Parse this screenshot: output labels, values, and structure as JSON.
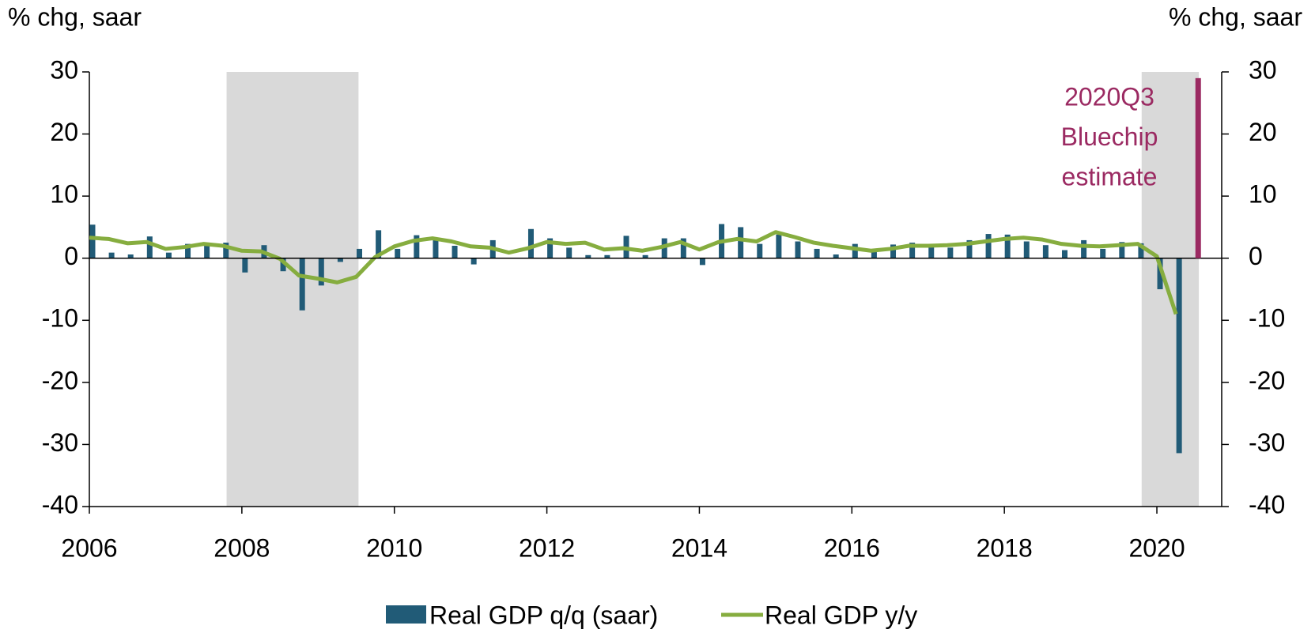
{
  "chart_data": {
    "type": "bar",
    "y_label": "% chg, saar",
    "y2_label": "% chg, saar",
    "x": [
      2006,
      2006.25,
      2006.5,
      2006.75,
      2007,
      2007.25,
      2007.5,
      2007.75,
      2008,
      2008.25,
      2008.5,
      2008.75,
      2009,
      2009.25,
      2009.5,
      2009.75,
      2010,
      2010.25,
      2010.5,
      2010.75,
      2011,
      2011.25,
      2011.5,
      2011.75,
      2012,
      2012.25,
      2012.5,
      2012.75,
      2013,
      2013.25,
      2013.5,
      2013.75,
      2014,
      2014.25,
      2014.5,
      2014.75,
      2015,
      2015.25,
      2015.5,
      2015.75,
      2016,
      2016.25,
      2016.5,
      2016.75,
      2017,
      2017.25,
      2017.5,
      2017.75,
      2018,
      2018.25,
      2018.5,
      2018.75,
      2019,
      2019.25,
      2019.5,
      2019.75,
      2020,
      2020.25
    ],
    "series": [
      {
        "name": "Real GDP q/q (saar)",
        "type": "bar",
        "color": "#215b77",
        "values": [
          5.4,
          0.9,
          0.6,
          3.5,
          0.9,
          2.3,
          2.2,
          2.5,
          -2.3,
          2.1,
          -2.1,
          -8.4,
          -4.4,
          -0.6,
          1.5,
          4.5,
          1.5,
          3.7,
          3.0,
          2.0,
          -1.0,
          2.9,
          -0.1,
          4.7,
          3.2,
          1.7,
          0.5,
          0.5,
          3.6,
          0.5,
          3.2,
          3.2,
          -1.1,
          5.5,
          5.0,
          2.3,
          3.8,
          2.7,
          1.5,
          0.6,
          2.3,
          1.3,
          2.2,
          2.5,
          2.3,
          1.7,
          2.9,
          3.9,
          3.8,
          2.7,
          2.1,
          1.3,
          2.9,
          1.5,
          2.6,
          2.4,
          -5.0,
          -31.4
        ]
      },
      {
        "name": "Real GDP y/y",
        "type": "line",
        "color": "#86ad3f",
        "values": [
          3.3,
          3.1,
          2.4,
          2.6,
          1.5,
          1.8,
          2.3,
          2.0,
          1.2,
          1.1,
          -0.1,
          -2.8,
          -3.3,
          -3.9,
          -3.0,
          0.2,
          1.9,
          2.8,
          3.2,
          2.7,
          1.9,
          1.7,
          0.9,
          1.6,
          2.6,
          2.3,
          2.5,
          1.4,
          1.6,
          1.2,
          1.8,
          2.6,
          1.4,
          2.6,
          3.1,
          2.7,
          4.2,
          3.4,
          2.5,
          2.0,
          1.6,
          1.2,
          1.5,
          2.0,
          2.0,
          2.1,
          2.3,
          2.7,
          3.1,
          3.3,
          3.0,
          2.3,
          2.0,
          1.9,
          2.1,
          2.3,
          0.3,
          -9.0
        ]
      }
    ],
    "estimate": {
      "x": 2020.5,
      "value": 29,
      "color": "#9b2a62"
    },
    "annotation": [
      "2020Q3",
      "Bluechip",
      "estimate"
    ],
    "shaded_ranges": [
      [
        2007.8,
        2009.53
      ],
      [
        2019.8,
        2020.55
      ]
    ],
    "shade_color": "#d9d9d9",
    "xlim": [
      2006,
      2020.85
    ],
    "xticks": [
      2006,
      2008,
      2010,
      2012,
      2014,
      2016,
      2018,
      2020
    ],
    "ylim": [
      -40,
      30
    ],
    "yticks": [
      -40,
      -30,
      -20,
      -10,
      0,
      10,
      20,
      30
    ],
    "y2lim": [
      -40,
      30
    ],
    "y2ticks": [
      -40,
      -30,
      -20,
      -10,
      0,
      10,
      20,
      30
    ],
    "legend": "bottom"
  }
}
